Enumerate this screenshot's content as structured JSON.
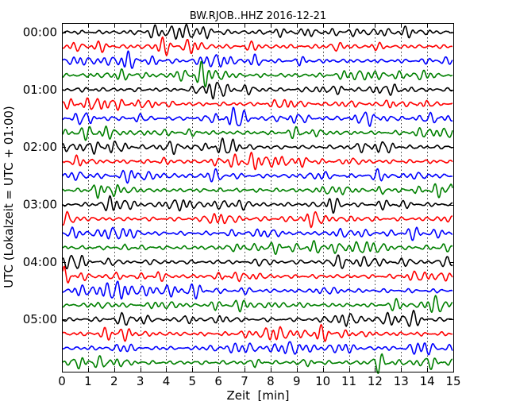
{
  "chart_data": {
    "type": "line",
    "subtype": "dayplot",
    "title": "BW.RJOB..HHZ 2016-12-21",
    "xlabel": "Zeit  [min]",
    "ylabel": "UTC (Lokalzeit = UTC + 01:00)",
    "xlim": [
      0,
      15
    ],
    "x_ticks": [
      "0",
      "1",
      "2",
      "3",
      "4",
      "5",
      "6",
      "7",
      "8",
      "9",
      "10",
      "11",
      "12",
      "13",
      "14",
      "15"
    ],
    "y_tick_labels": [
      "00:00",
      "01:00",
      "02:00",
      "03:00",
      "04:00",
      "05:00"
    ],
    "traces_per_hour": 4,
    "trace_count": 24,
    "interval_minutes": 15,
    "colors": [
      "#000000",
      "#ff0000",
      "#0000ff",
      "#008000"
    ],
    "vertical_grid": true,
    "legend": "none"
  }
}
